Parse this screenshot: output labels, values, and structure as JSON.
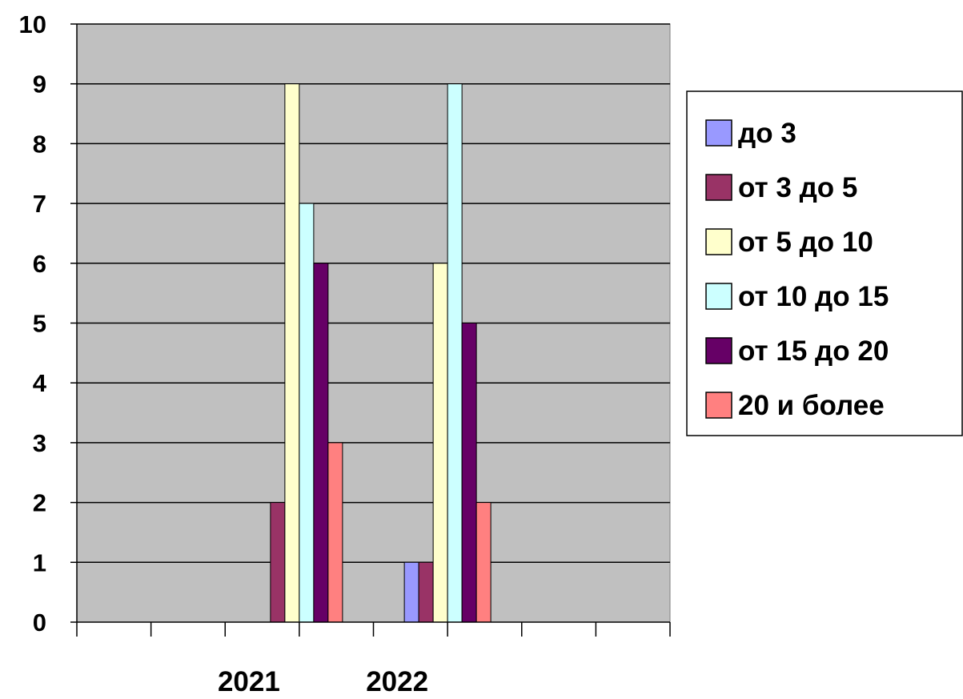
{
  "chart_data": {
    "type": "bar",
    "title": "",
    "xlabel": "",
    "ylabel": "",
    "categories": [
      "",
      "2021",
      "2022",
      ""
    ],
    "ylim": [
      0,
      10
    ],
    "y_ticks": [
      "0",
      "1",
      "2",
      "3",
      "4",
      "5",
      "6",
      "7",
      "8",
      "9",
      "10"
    ],
    "grid": true,
    "legend_position": "right",
    "series": [
      {
        "name": "до 3",
        "color": "#9999ff",
        "values": [
          0,
          0,
          1,
          0
        ]
      },
      {
        "name": "от 3 до 5",
        "color": "#993366",
        "values": [
          0,
          2,
          1,
          0
        ]
      },
      {
        "name": "от 5 до 10",
        "color": "#ffffcc",
        "values": [
          0,
          9,
          6,
          0
        ]
      },
      {
        "name": "от 10 до 15",
        "color": "#ccffff",
        "values": [
          0,
          7,
          9,
          0
        ]
      },
      {
        "name": "от 15 до 20",
        "color": "#660066",
        "values": [
          0,
          6,
          5,
          0
        ]
      },
      {
        "name": "20 и более",
        "color": "#ff8080",
        "values": [
          0,
          3,
          2,
          0
        ]
      }
    ],
    "plot_background": "#c0c0c0"
  }
}
